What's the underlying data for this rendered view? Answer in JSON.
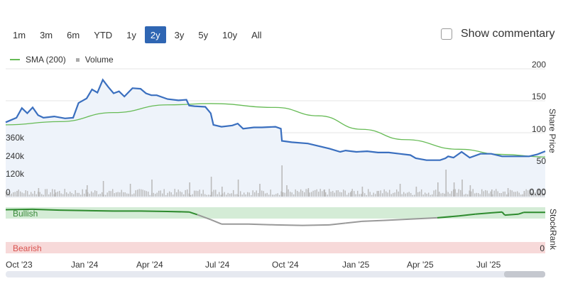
{
  "range_buttons": [
    "1m",
    "3m",
    "6m",
    "YTD",
    "1y",
    "2y",
    "3y",
    "5y",
    "10y",
    "All"
  ],
  "active_range": "2y",
  "commentary_label": "Show commentary",
  "legend": {
    "sma_label": "SMA (200)",
    "volume_label": "Volume"
  },
  "colors": {
    "price": "#3a6fbf",
    "sma": "#66bb55",
    "volume": "#bbbbbb",
    "bullish_band": "#d4ecd6",
    "bearish_band": "#f7d9d9",
    "stockrank_bull": "#2e8b2e",
    "stockrank_bear": "#999999",
    "active_button": "#2f66b3"
  },
  "chart_data": {
    "type": "line",
    "x_labels": [
      "Oct '23",
      "Jan '24",
      "Apr '24",
      "Jul '24",
      "Oct '24",
      "Jan '25",
      "Apr '25",
      "Jul '25"
    ],
    "price_axis": {
      "label": "Share Price",
      "ticks": [
        "200",
        "150",
        "100",
        "50"
      ],
      "range": [
        50,
        200
      ]
    },
    "volume_axis": {
      "ticks": [
        "360k",
        "240k",
        "120k",
        "0"
      ],
      "right_ticks": [
        "0.00",
        "0.00"
      ]
    },
    "stockrank_axis": {
      "label": "StockRank",
      "bullish_label": "Bullish",
      "bearish_label": "Bearish",
      "tick": "0"
    },
    "price": [
      {
        "x": 0.0,
        "y": 117
      },
      {
        "x": 0.02,
        "y": 124
      },
      {
        "x": 0.03,
        "y": 139
      },
      {
        "x": 0.04,
        "y": 131
      },
      {
        "x": 0.05,
        "y": 140
      },
      {
        "x": 0.06,
        "y": 128
      },
      {
        "x": 0.07,
        "y": 124
      },
      {
        "x": 0.09,
        "y": 126
      },
      {
        "x": 0.11,
        "y": 123
      },
      {
        "x": 0.125,
        "y": 124
      },
      {
        "x": 0.135,
        "y": 147
      },
      {
        "x": 0.15,
        "y": 154
      },
      {
        "x": 0.16,
        "y": 168
      },
      {
        "x": 0.17,
        "y": 163
      },
      {
        "x": 0.18,
        "y": 183
      },
      {
        "x": 0.19,
        "y": 172
      },
      {
        "x": 0.2,
        "y": 162
      },
      {
        "x": 0.21,
        "y": 165
      },
      {
        "x": 0.22,
        "y": 157
      },
      {
        "x": 0.235,
        "y": 170
      },
      {
        "x": 0.25,
        "y": 169
      },
      {
        "x": 0.26,
        "y": 162
      },
      {
        "x": 0.27,
        "y": 159
      },
      {
        "x": 0.28,
        "y": 159
      },
      {
        "x": 0.3,
        "y": 153
      },
      {
        "x": 0.32,
        "y": 151
      },
      {
        "x": 0.335,
        "y": 152
      },
      {
        "x": 0.34,
        "y": 143
      },
      {
        "x": 0.35,
        "y": 142
      },
      {
        "x": 0.37,
        "y": 141
      },
      {
        "x": 0.38,
        "y": 131
      },
      {
        "x": 0.385,
        "y": 113
      },
      {
        "x": 0.4,
        "y": 110
      },
      {
        "x": 0.42,
        "y": 112
      },
      {
        "x": 0.43,
        "y": 115
      },
      {
        "x": 0.44,
        "y": 107
      },
      {
        "x": 0.46,
        "y": 109
      },
      {
        "x": 0.475,
        "y": 109
      },
      {
        "x": 0.5,
        "y": 110
      },
      {
        "x": 0.51,
        "y": 107
      },
      {
        "x": 0.512,
        "y": 88
      },
      {
        "x": 0.53,
        "y": 86
      },
      {
        "x": 0.56,
        "y": 84
      },
      {
        "x": 0.58,
        "y": 80
      },
      {
        "x": 0.6,
        "y": 76
      },
      {
        "x": 0.62,
        "y": 71
      },
      {
        "x": 0.63,
        "y": 73
      },
      {
        "x": 0.65,
        "y": 71
      },
      {
        "x": 0.67,
        "y": 72
      },
      {
        "x": 0.69,
        "y": 70
      },
      {
        "x": 0.71,
        "y": 70
      },
      {
        "x": 0.73,
        "y": 68
      },
      {
        "x": 0.75,
        "y": 66
      },
      {
        "x": 0.76,
        "y": 61
      },
      {
        "x": 0.78,
        "y": 58
      },
      {
        "x": 0.805,
        "y": 58
      },
      {
        "x": 0.815,
        "y": 61
      },
      {
        "x": 0.82,
        "y": 64
      },
      {
        "x": 0.83,
        "y": 62
      },
      {
        "x": 0.845,
        "y": 71
      },
      {
        "x": 0.86,
        "y": 62
      },
      {
        "x": 0.88,
        "y": 68
      },
      {
        "x": 0.9,
        "y": 68
      },
      {
        "x": 0.92,
        "y": 64
      },
      {
        "x": 0.94,
        "y": 64
      },
      {
        "x": 0.97,
        "y": 64
      },
      {
        "x": 0.985,
        "y": 67
      },
      {
        "x": 1.0,
        "y": 72
      }
    ],
    "sma": [
      {
        "x": 0.0,
        "y": 113
      },
      {
        "x": 0.1,
        "y": 118
      },
      {
        "x": 0.2,
        "y": 132
      },
      {
        "x": 0.3,
        "y": 144
      },
      {
        "x": 0.38,
        "y": 146
      },
      {
        "x": 0.5,
        "y": 140
      },
      {
        "x": 0.58,
        "y": 127
      },
      {
        "x": 0.66,
        "y": 106
      },
      {
        "x": 0.74,
        "y": 90
      },
      {
        "x": 0.84,
        "y": 75
      },
      {
        "x": 0.92,
        "y": 67
      },
      {
        "x": 1.0,
        "y": 63
      }
    ],
    "volume_spikes": [
      {
        "x": 0.02,
        "v": 20
      },
      {
        "x": 0.06,
        "v": 30
      },
      {
        "x": 0.09,
        "v": 25
      },
      {
        "x": 0.15,
        "v": 40
      },
      {
        "x": 0.18,
        "v": 55
      },
      {
        "x": 0.23,
        "v": 45
      },
      {
        "x": 0.27,
        "v": 60
      },
      {
        "x": 0.34,
        "v": 50
      },
      {
        "x": 0.38,
        "v": 70
      },
      {
        "x": 0.4,
        "v": 35
      },
      {
        "x": 0.43,
        "v": 60
      },
      {
        "x": 0.47,
        "v": 45
      },
      {
        "x": 0.511,
        "v": 110
      },
      {
        "x": 0.52,
        "v": 40
      },
      {
        "x": 0.56,
        "v": 30
      },
      {
        "x": 0.59,
        "v": 25
      },
      {
        "x": 0.64,
        "v": 20
      },
      {
        "x": 0.66,
        "v": 35
      },
      {
        "x": 0.69,
        "v": 20
      },
      {
        "x": 0.73,
        "v": 45
      },
      {
        "x": 0.76,
        "v": 35
      },
      {
        "x": 0.8,
        "v": 50
      },
      {
        "x": 0.815,
        "v": 95
      },
      {
        "x": 0.83,
        "v": 50
      },
      {
        "x": 0.845,
        "v": 60
      },
      {
        "x": 0.86,
        "v": 40
      },
      {
        "x": 0.9,
        "v": 25
      },
      {
        "x": 0.93,
        "v": 30
      },
      {
        "x": 0.96,
        "v": 20
      },
      {
        "x": 0.99,
        "v": 25
      }
    ],
    "stockrank": [
      {
        "x": 0.0,
        "y": 96
      },
      {
        "x": 0.05,
        "y": 97
      },
      {
        "x": 0.1,
        "y": 95
      },
      {
        "x": 0.15,
        "y": 94
      },
      {
        "x": 0.2,
        "y": 93
      },
      {
        "x": 0.25,
        "y": 93
      },
      {
        "x": 0.3,
        "y": 92
      },
      {
        "x": 0.34,
        "y": 91
      },
      {
        "x": 0.355,
        "y": 85
      },
      {
        "x": 0.38,
        "y": 74
      },
      {
        "x": 0.4,
        "y": 64
      },
      {
        "x": 0.45,
        "y": 64
      },
      {
        "x": 0.5,
        "y": 62
      },
      {
        "x": 0.55,
        "y": 61
      },
      {
        "x": 0.6,
        "y": 62
      },
      {
        "x": 0.63,
        "y": 66
      },
      {
        "x": 0.66,
        "y": 70
      },
      {
        "x": 0.7,
        "y": 72
      },
      {
        "x": 0.75,
        "y": 75
      },
      {
        "x": 0.8,
        "y": 78
      },
      {
        "x": 0.84,
        "y": 82
      },
      {
        "x": 0.87,
        "y": 86
      },
      {
        "x": 0.9,
        "y": 89
      },
      {
        "x": 0.92,
        "y": 91
      },
      {
        "x": 0.925,
        "y": 84
      },
      {
        "x": 0.95,
        "y": 86
      },
      {
        "x": 0.96,
        "y": 90
      },
      {
        "x": 1.0,
        "y": 90
      }
    ]
  }
}
